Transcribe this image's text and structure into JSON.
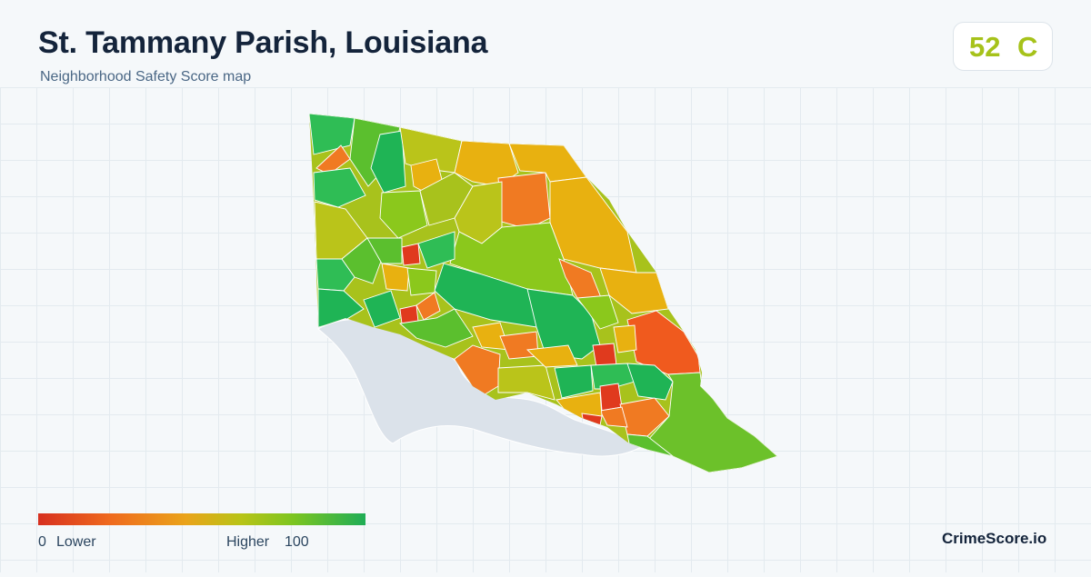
{
  "header": {
    "title": "St. Tammany Parish, Louisiana",
    "subtitle": "Neighborhood Safety Score map"
  },
  "score_card": {
    "score": "52",
    "grade": "C",
    "color": "#a6c21a"
  },
  "legend": {
    "min_value": "0",
    "min_label": "Lower",
    "max_label": "Higher",
    "max_value": "100",
    "gradient_colors": [
      "#d7301f",
      "#ef6a1e",
      "#eaa31a",
      "#b8c417",
      "#7cc520",
      "#1fad56"
    ]
  },
  "brand": {
    "name": "CrimeScore.io"
  },
  "map": {
    "region": "St. Tammany Parish",
    "water_body_color": "#dbe2ea",
    "score_colors": {
      "very_low": "#e03a1e",
      "low": "#f07a22",
      "mid_low": "#e8b110",
      "mid": "#bac41a",
      "mid_high": "#8bc81c",
      "high": "#5bbf2e",
      "very_high": "#1fb455"
    }
  }
}
